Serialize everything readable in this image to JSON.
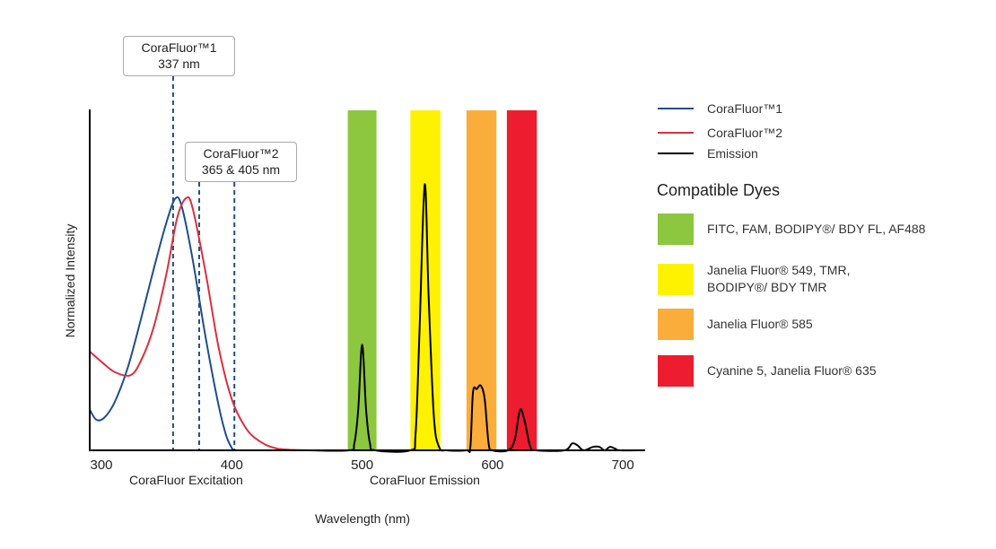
{
  "chart_data": {
    "type": "line",
    "xlabel": "Wavelength (nm)",
    "ylabel": "Normalized Intensity",
    "section_labels": [
      "CoraFluor Excitation",
      "CoraFluor Emission"
    ],
    "xlim": [
      291,
      716
    ],
    "ylim": [
      0,
      1
    ],
    "x_ticks": [
      300,
      400,
      500,
      600,
      700
    ],
    "grid": false,
    "legend_placement": "right",
    "series": [
      {
        "name": "CoraFluor™1",
        "color": "#1f4e8c",
        "points": [
          [
            291,
            0.12
          ],
          [
            296,
            0.09
          ],
          [
            302,
            0.095
          ],
          [
            310,
            0.14
          ],
          [
            320,
            0.24
          ],
          [
            330,
            0.38
          ],
          [
            340,
            0.53
          ],
          [
            350,
            0.67
          ],
          [
            357,
            0.74
          ],
          [
            362,
            0.71
          ],
          [
            370,
            0.56
          ],
          [
            380,
            0.33
          ],
          [
            390,
            0.13
          ],
          [
            396,
            0.04
          ],
          [
            401,
            0
          ]
        ]
      },
      {
        "name": "CoraFluor™2",
        "color": "#d9303f",
        "points": [
          [
            291,
            0.29
          ],
          [
            300,
            0.26
          ],
          [
            310,
            0.23
          ],
          [
            322,
            0.22
          ],
          [
            330,
            0.26
          ],
          [
            340,
            0.36
          ],
          [
            350,
            0.52
          ],
          [
            358,
            0.68
          ],
          [
            365,
            0.74
          ],
          [
            370,
            0.71
          ],
          [
            380,
            0.52
          ],
          [
            390,
            0.3
          ],
          [
            400,
            0.15
          ],
          [
            410,
            0.07
          ],
          [
            420,
            0.03
          ],
          [
            435,
            0.005
          ],
          [
            460,
            0
          ]
        ]
      },
      {
        "name": "Emission",
        "color": "#000000",
        "points": [
          [
            460,
            0
          ],
          [
            490,
            0
          ],
          [
            494,
            0.02
          ],
          [
            497,
            0.12
          ],
          [
            500,
            0.31
          ],
          [
            503,
            0.12
          ],
          [
            506,
            0.02
          ],
          [
            510,
            0
          ],
          [
            537,
            0
          ],
          [
            541,
            0.05
          ],
          [
            544,
            0.35
          ],
          [
            548,
            0.78
          ],
          [
            551,
            0.45
          ],
          [
            555,
            0.1
          ],
          [
            559,
            0.01
          ],
          [
            565,
            0
          ],
          [
            580,
            0
          ],
          [
            583,
            0.01
          ],
          [
            585,
            0.17
          ],
          [
            588,
            0.18
          ],
          [
            591,
            0.19
          ],
          [
            594,
            0.15
          ],
          [
            597,
            0.02
          ],
          [
            600,
            0
          ],
          [
            612,
            0
          ],
          [
            617,
            0.03
          ],
          [
            620,
            0.1
          ],
          [
            622,
            0.12
          ],
          [
            625,
            0.08
          ],
          [
            629,
            0.01
          ],
          [
            633,
            0
          ],
          [
            655,
            0
          ],
          [
            661,
            0.02
          ],
          [
            665,
            0.015
          ],
          [
            670,
            0
          ],
          [
            677,
            0.01
          ],
          [
            682,
            0.01
          ],
          [
            686,
            0
          ],
          [
            690,
            0.01
          ],
          [
            694,
            0.005
          ],
          [
            698,
            0
          ],
          [
            716,
            0
          ]
        ]
      }
    ],
    "excitation_markers_nm": [
      355,
      375,
      402
    ],
    "marker_color": "#1f4e8c",
    "callouts": [
      {
        "line1": "CoraFluor™1",
        "line2": "337 nm"
      },
      {
        "line1": "CoraFluor™2",
        "line2": "365 & 405 nm"
      }
    ],
    "dye_bands": [
      {
        "range": [
          489,
          511
        ],
        "color": "#8dc63f",
        "label": "FITC, FAM, BODIPY®/ BDY FL, AF488"
      },
      {
        "range": [
          537,
          560
        ],
        "color": "#fff200",
        "label": "Janelia Fluor® 549, TMR,\nBODIPY®/ BDY TMR"
      },
      {
        "range": [
          580,
          603
        ],
        "color": "#fbad3b",
        "label": "Janelia Fluor® 585"
      },
      {
        "range": [
          611,
          634
        ],
        "color": "#ed1c2e",
        "label": "Cyanine 5, Janelia Fluor® 635"
      }
    ],
    "dyes_title": "Compatible Dyes"
  }
}
